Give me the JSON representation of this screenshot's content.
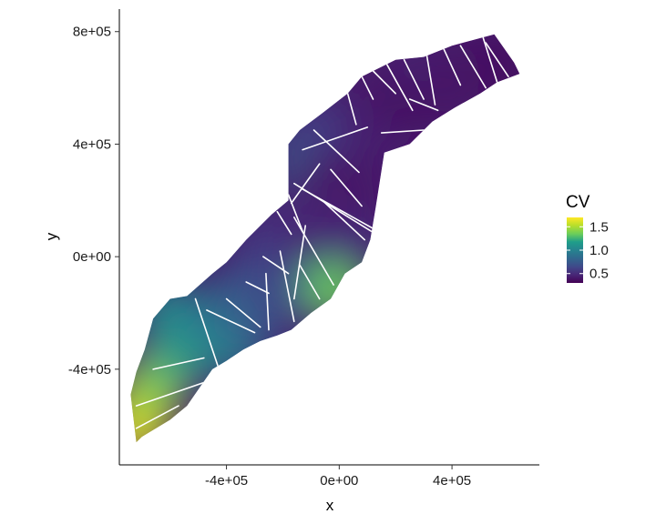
{
  "chart_data": {
    "type": "heatmap",
    "title": "",
    "xlabel": "x",
    "ylabel": "y",
    "xlim": [
      -780000,
      710000
    ],
    "ylim": [
      -740000,
      880000
    ],
    "x_ticks": [
      {
        "value": -400000,
        "label": "-4e+05"
      },
      {
        "value": 0,
        "label": "0e+00"
      },
      {
        "value": 400000,
        "label": "4e+05"
      }
    ],
    "y_ticks": [
      {
        "value": -400000,
        "label": "-4e+05"
      },
      {
        "value": 0,
        "label": "0e+00"
      },
      {
        "value": 400000,
        "label": "4e+05"
      },
      {
        "value": 800000,
        "label": "8e+05"
      }
    ],
    "grid": false,
    "legend": {
      "title": "CV",
      "placement": "right",
      "range": [
        0.3,
        1.7
      ],
      "ticks": [
        {
          "value": 0.5,
          "label": "0.5"
        },
        {
          "value": 1.0,
          "label": "1.0"
        },
        {
          "value": 1.5,
          "label": "1.5"
        }
      ],
      "colormap": [
        "#440154",
        "#482777",
        "#3f4a8a",
        "#31678e",
        "#26838f",
        "#1f9d8a",
        "#6cce5a",
        "#b6de2b",
        "#fee825"
      ]
    },
    "region_outline": [
      [
        -720000,
        -660000
      ],
      [
        -700000,
        -640000
      ],
      [
        -600000,
        -580000
      ],
      [
        -540000,
        -530000
      ],
      [
        -450000,
        -400000
      ],
      [
        -400000,
        -370000
      ],
      [
        -340000,
        -330000
      ],
      [
        -280000,
        -300000
      ],
      [
        -220000,
        -280000
      ],
      [
        -170000,
        -260000
      ],
      [
        -100000,
        -200000
      ],
      [
        -30000,
        -150000
      ],
      [
        20000,
        -60000
      ],
      [
        80000,
        -20000
      ],
      [
        110000,
        60000
      ],
      [
        130000,
        180000
      ],
      [
        160000,
        370000
      ],
      [
        250000,
        400000
      ],
      [
        330000,
        480000
      ],
      [
        410000,
        530000
      ],
      [
        500000,
        580000
      ],
      [
        560000,
        620000
      ],
      [
        640000,
        650000
      ],
      [
        620000,
        690000
      ],
      [
        550000,
        790000
      ],
      [
        400000,
        750000
      ],
      [
        300000,
        710000
      ],
      [
        200000,
        700000
      ],
      [
        80000,
        640000
      ],
      [
        30000,
        580000
      ],
      [
        -60000,
        510000
      ],
      [
        -140000,
        450000
      ],
      [
        -180000,
        400000
      ],
      [
        -180000,
        200000
      ],
      [
        -240000,
        150000
      ],
      [
        -330000,
        60000
      ],
      [
        -400000,
        -20000
      ],
      [
        -450000,
        -60000
      ],
      [
        -540000,
        -140000
      ],
      [
        -600000,
        -150000
      ],
      [
        -660000,
        -220000
      ],
      [
        -690000,
        -330000
      ],
      [
        -720000,
        -410000
      ],
      [
        -740000,
        -490000
      ]
    ],
    "cv_field": [
      {
        "x": -720000,
        "y": -610000,
        "cv": 1.65
      },
      {
        "x": -690000,
        "y": -520000,
        "cv": 1.55
      },
      {
        "x": -640000,
        "y": -430000,
        "cv": 1.4
      },
      {
        "x": -560000,
        "y": -340000,
        "cv": 1.2
      },
      {
        "x": -600000,
        "y": -200000,
        "cv": 1.1
      },
      {
        "x": -470000,
        "y": -250000,
        "cv": 0.95
      },
      {
        "x": -380000,
        "y": -320000,
        "cv": 1.0
      },
      {
        "x": -360000,
        "y": -160000,
        "cv": 0.85
      },
      {
        "x": -300000,
        "y": -220000,
        "cv": 0.75
      },
      {
        "x": -270000,
        "y": -60000,
        "cv": 0.7
      },
      {
        "x": -180000,
        "y": -120000,
        "cv": 0.6
      },
      {
        "x": -110000,
        "y": -60000,
        "cv": 0.7
      },
      {
        "x": -20000,
        "y": -80000,
        "cv": 1.2
      },
      {
        "x": -10000,
        "y": -120000,
        "cv": 1.35
      },
      {
        "x": -230000,
        "y": 60000,
        "cv": 0.6
      },
      {
        "x": -150000,
        "y": 60000,
        "cv": 0.5
      },
      {
        "x": -60000,
        "y": 120000,
        "cv": 0.45
      },
      {
        "x": 50000,
        "y": 60000,
        "cv": 0.5
      },
      {
        "x": -140000,
        "y": 350000,
        "cv": 0.75
      },
      {
        "x": -40000,
        "y": 300000,
        "cv": 0.4
      },
      {
        "x": 60000,
        "y": 240000,
        "cv": 0.4
      },
      {
        "x": -60000,
        "y": 460000,
        "cv": 0.6
      },
      {
        "x": 80000,
        "y": 500000,
        "cv": 0.45
      },
      {
        "x": 150000,
        "y": 600000,
        "cv": 0.4
      },
      {
        "x": 260000,
        "y": 560000,
        "cv": 0.35
      },
      {
        "x": 300000,
        "y": 680000,
        "cv": 0.45
      },
      {
        "x": 420000,
        "y": 640000,
        "cv": 0.35
      },
      {
        "x": 520000,
        "y": 720000,
        "cv": 0.4
      },
      {
        "x": 600000,
        "y": 670000,
        "cv": 0.35
      },
      {
        "x": 430000,
        "y": 560000,
        "cv": 0.4
      }
    ],
    "transect_lines": [
      [
        [
          -720000,
          -530000
        ],
        [
          -430000,
          -430000
        ]
      ],
      [
        [
          -720000,
          -610000
        ],
        [
          -570000,
          -530000
        ]
      ],
      [
        [
          -660000,
          -400000
        ],
        [
          -480000,
          -360000
        ]
      ],
      [
        [
          -510000,
          -150000
        ],
        [
          -430000,
          -390000
        ]
      ],
      [
        [
          -470000,
          -190000
        ],
        [
          -300000,
          -270000
        ]
      ],
      [
        [
          -400000,
          -150000
        ],
        [
          -280000,
          -250000
        ]
      ],
      [
        [
          -330000,
          -90000
        ],
        [
          -250000,
          -130000
        ]
      ],
      [
        [
          -260000,
          -60000
        ],
        [
          -250000,
          -260000
        ]
      ],
      [
        [
          -270000,
          0
        ],
        [
          -180000,
          -60000
        ]
      ],
      [
        [
          -210000,
          20000
        ],
        [
          -160000,
          -230000
        ]
      ],
      [
        [
          -140000,
          -30000
        ],
        [
          -70000,
          -150000
        ]
      ],
      [
        [
          -120000,
          110000
        ],
        [
          -160000,
          -150000
        ]
      ],
      [
        [
          -220000,
          160000
        ],
        [
          -170000,
          80000
        ]
      ],
      [
        [
          -180000,
          220000
        ],
        [
          -130000,
          90000
        ]
      ],
      [
        [
          -160000,
          140000
        ],
        [
          -20000,
          -100000
        ]
      ],
      [
        [
          -160000,
          260000
        ],
        [
          130000,
          80000
        ]
      ],
      [
        [
          -70000,
          330000
        ],
        [
          -170000,
          190000
        ]
      ],
      [
        [
          -30000,
          310000
        ],
        [
          80000,
          180000
        ]
      ],
      [
        [
          -130000,
          240000
        ],
        [
          120000,
          100000
        ]
      ],
      [
        [
          -60000,
          200000
        ],
        [
          90000,
          60000
        ]
      ],
      [
        [
          -130000,
          380000
        ],
        [
          100000,
          460000
        ]
      ],
      [
        [
          -90000,
          450000
        ],
        [
          70000,
          300000
        ]
      ],
      [
        [
          30000,
          580000
        ],
        [
          60000,
          470000
        ]
      ],
      [
        [
          80000,
          640000
        ],
        [
          120000,
          560000
        ]
      ],
      [
        [
          120000,
          660000
        ],
        [
          200000,
          580000
        ]
      ],
      [
        [
          160000,
          700000
        ],
        [
          260000,
          520000
        ]
      ],
      [
        [
          230000,
          700000
        ],
        [
          300000,
          560000
        ]
      ],
      [
        [
          310000,
          720000
        ],
        [
          340000,
          540000
        ]
      ],
      [
        [
          370000,
          740000
        ],
        [
          430000,
          610000
        ]
      ],
      [
        [
          430000,
          750000
        ],
        [
          520000,
          600000
        ]
      ],
      [
        [
          510000,
          780000
        ],
        [
          560000,
          620000
        ]
      ],
      [
        [
          520000,
          760000
        ],
        [
          600000,
          640000
        ]
      ],
      [
        [
          250000,
          560000
        ],
        [
          350000,
          520000
        ]
      ],
      [
        [
          150000,
          440000
        ],
        [
          300000,
          450000
        ]
      ]
    ]
  }
}
